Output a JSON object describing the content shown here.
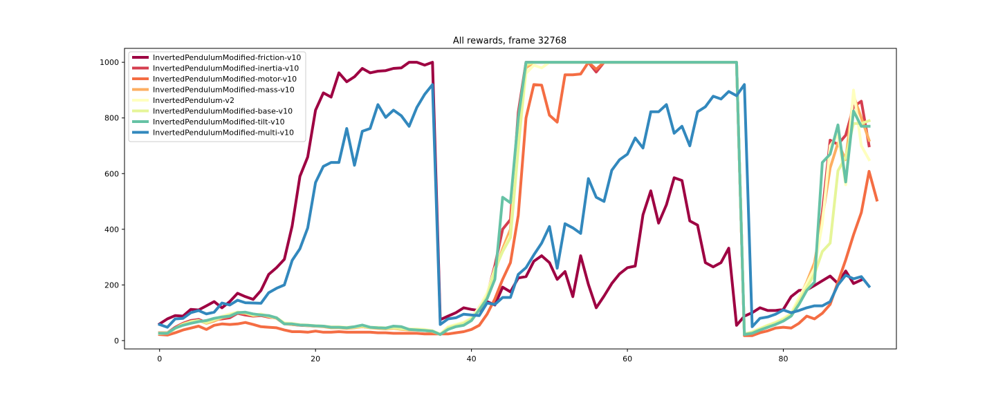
{
  "chart_data": {
    "type": "line",
    "title": "All rewards, frame 32768",
    "xlabel": "",
    "ylabel": "",
    "xlim": [
      -4.5,
      94.5
    ],
    "ylim": [
      -30,
      1050
    ],
    "xticks": [
      0,
      20,
      40,
      60,
      80
    ],
    "yticks": [
      0,
      200,
      400,
      600,
      800,
      1000
    ],
    "legend_position": "top-left",
    "grid": false,
    "series": [
      {
        "name": "InvertedPendulumModified-friction-v10",
        "color": "#9e0142",
        "values": [
          60,
          78,
          90,
          88,
          112,
          110,
          125,
          140,
          118,
          140,
          170,
          158,
          148,
          180,
          238,
          262,
          292,
          412,
          590,
          660,
          828,
          890,
          875,
          962,
          930,
          948,
          978,
          962,
          968,
          970,
          978,
          980,
          1000,
          1000,
          990,
          1000,
          75,
          88,
          100,
          118,
          112,
          108,
          140,
          128,
          192,
          175,
          225,
          230,
          285,
          305,
          280,
          220,
          248,
          158,
          305,
          202,
          118,
          160,
          205,
          240,
          262,
          268,
          452,
          538,
          422,
          488,
          585,
          575,
          430,
          415,
          280,
          265,
          280,
          332,
          55,
          88,
          100,
          118,
          108,
          108,
          112,
          158,
          180,
          182,
          198,
          215,
          232,
          205,
          250,
          205,
          218
        ]
      },
      {
        "name": "InvertedPendulumModified-inertia-v10",
        "color": "#d53e4f",
        "values": [
          28,
          28,
          48,
          62,
          72,
          76,
          65,
          75,
          78,
          82,
          98,
          92,
          88,
          90,
          84,
          82,
          62,
          58,
          55,
          54,
          52,
          52,
          48,
          48,
          46,
          48,
          50,
          47,
          46,
          44,
          46,
          42,
          40,
          40,
          38,
          35,
          22,
          45,
          52,
          60,
          75,
          120,
          165,
          270,
          400,
          435,
          820,
          1000,
          1000,
          1000,
          1000,
          1000,
          1000,
          1000,
          1000,
          1000,
          965,
          1000,
          1000,
          1000,
          1000,
          1000,
          1000,
          1000,
          1000,
          1000,
          1000,
          1000,
          1000,
          1000,
          1000,
          1000,
          1000,
          1000,
          1000,
          22,
          28,
          38,
          48,
          62,
          72,
          92,
          148,
          200,
          265,
          460,
          720,
          705,
          738,
          840,
          860,
          700
        ]
      },
      {
        "name": "InvertedPendulumModified-motor-v10",
        "color": "#f46d43",
        "values": [
          22,
          20,
          28,
          38,
          45,
          52,
          40,
          55,
          60,
          58,
          60,
          65,
          58,
          50,
          48,
          46,
          38,
          32,
          32,
          30,
          34,
          30,
          30,
          32,
          30,
          30,
          30,
          30,
          28,
          28,
          26,
          26,
          26,
          26,
          24,
          24,
          24,
          24,
          28,
          32,
          40,
          55,
          95,
          150,
          220,
          280,
          450,
          800,
          920,
          918,
          810,
          785,
          955,
          955,
          958,
          1000,
          975,
          1000,
          1000,
          1000,
          1000,
          1000,
          1000,
          1000,
          1000,
          1000,
          1000,
          1000,
          1000,
          1000,
          1000,
          1000,
          1000,
          1000,
          1000,
          18,
          18,
          28,
          35,
          45,
          48,
          45,
          62,
          88,
          78,
          98,
          130,
          210,
          290,
          380,
          460,
          608,
          505
        ]
      },
      {
        "name": "InvertedPendulumModified-mass-v10",
        "color": "#fdae61",
        "values": [
          28,
          28,
          45,
          60,
          68,
          72,
          62,
          70,
          82,
          88,
          100,
          98,
          90,
          92,
          86,
          80,
          60,
          58,
          56,
          54,
          52,
          50,
          46,
          46,
          44,
          46,
          50,
          46,
          44,
          42,
          44,
          40,
          38,
          38,
          36,
          32,
          22,
          48,
          55,
          62,
          80,
          115,
          160,
          250,
          330,
          400,
          780,
          980,
          1000,
          1000,
          1000,
          1000,
          1000,
          1000,
          1000,
          1000,
          1000,
          1000,
          1000,
          1000,
          1000,
          1000,
          1000,
          1000,
          1000,
          1000,
          1000,
          1000,
          1000,
          1000,
          1000,
          1000,
          1000,
          1000,
          1000,
          22,
          30,
          40,
          52,
          65,
          78,
          95,
          150,
          210,
          280,
          440,
          620,
          710,
          650,
          880,
          800,
          720
        ]
      },
      {
        "name": "InvertedPendulum-v2",
        "color": "#ffffbf",
        "values": [
          25,
          26,
          42,
          55,
          66,
          70,
          66,
          76,
          88,
          96,
          102,
          100,
          92,
          96,
          88,
          82,
          64,
          62,
          58,
          56,
          54,
          52,
          50,
          50,
          48,
          50,
          52,
          48,
          48,
          46,
          48,
          44,
          42,
          42,
          40,
          36,
          24,
          50,
          58,
          66,
          82,
          120,
          170,
          260,
          320,
          380,
          700,
          960,
          990,
          980,
          1000,
          1000,
          1000,
          1000,
          1000,
          1000,
          1000,
          1000,
          1000,
          1000,
          1000,
          1000,
          1000,
          1000,
          1000,
          1000,
          1000,
          1000,
          1000,
          1000,
          1000,
          1000,
          1000,
          1000,
          1000,
          24,
          32,
          44,
          56,
          66,
          80,
          98,
          155,
          205,
          260,
          420,
          700,
          740,
          560,
          900,
          700,
          650
        ]
      },
      {
        "name": "InvertedPendulumModified-base-v10",
        "color": "#e6f598",
        "values": [
          26,
          27,
          44,
          58,
          68,
          72,
          64,
          74,
          84,
          92,
          102,
          100,
          92,
          94,
          88,
          82,
          62,
          60,
          56,
          55,
          53,
          52,
          48,
          48,
          46,
          48,
          52,
          47,
          46,
          44,
          46,
          42,
          40,
          40,
          38,
          34,
          22,
          46,
          54,
          62,
          78,
          112,
          158,
          255,
          320,
          370,
          690,
          990,
          1000,
          1000,
          1000,
          1000,
          1000,
          1000,
          1000,
          1000,
          1000,
          1000,
          1000,
          1000,
          1000,
          1000,
          1000,
          1000,
          1000,
          1000,
          1000,
          1000,
          1000,
          1000,
          1000,
          1000,
          1000,
          1000,
          1000,
          24,
          30,
          42,
          54,
          64,
          76,
          94,
          142,
          190,
          240,
          320,
          350,
          610,
          660,
          780,
          780,
          790
        ]
      },
      {
        "name": "InvertedPendulumModified-tilt-v10",
        "color": "#66c2a5",
        "values": [
          26,
          26,
          45,
          55,
          62,
          68,
          72,
          80,
          85,
          88,
          100,
          102,
          96,
          92,
          90,
          82,
          60,
          60,
          56,
          55,
          53,
          52,
          48,
          48,
          46,
          50,
          56,
          48,
          46,
          45,
          52,
          50,
          40,
          38,
          36,
          34,
          22,
          40,
          50,
          55,
          72,
          110,
          150,
          220,
          515,
          495,
          800,
          1000,
          1000,
          1000,
          1000,
          1000,
          1000,
          1000,
          1000,
          1000,
          1000,
          1000,
          1000,
          1000,
          1000,
          1000,
          1000,
          1000,
          1000,
          1000,
          1000,
          1000,
          1000,
          1000,
          1000,
          1000,
          1000,
          1000,
          1000,
          22,
          26,
          38,
          48,
          58,
          70,
          88,
          130,
          180,
          210,
          640,
          670,
          775,
          570,
          825,
          770,
          770
        ]
      },
      {
        "name": "InvertedPendulumModified-multi-v10",
        "color": "#3288bd",
        "values": [
          58,
          48,
          78,
          80,
          100,
          108,
          96,
          102,
          135,
          128,
          145,
          136,
          135,
          134,
          172,
          188,
          200,
          288,
          330,
          405,
          568,
          626,
          640,
          640,
          762,
          630,
          752,
          762,
          848,
          802,
          828,
          808,
          770,
          838,
          885,
          920,
          58,
          78,
          82,
          95,
          92,
          90,
          135,
          130,
          155,
          155,
          238,
          262,
          308,
          350,
          410,
          260,
          420,
          405,
          385,
          582,
          515,
          500,
          612,
          650,
          670,
          728,
          692,
          822,
          822,
          848,
          745,
          770,
          700,
          822,
          840,
          878,
          868,
          895,
          880,
          920,
          50,
          80,
          85,
          95,
          110,
          100,
          108,
          118,
          125,
          125,
          140,
          200,
          235,
          222,
          230,
          195
        ]
      }
    ]
  }
}
